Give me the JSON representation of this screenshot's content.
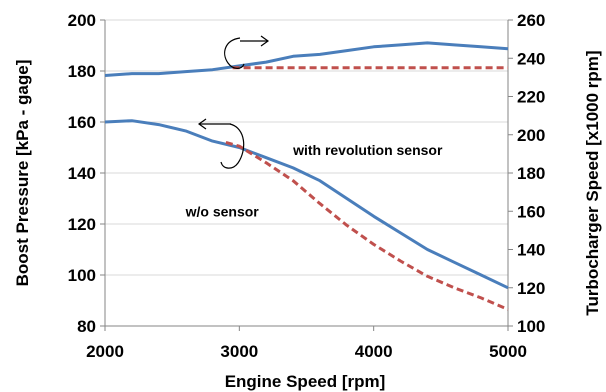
{
  "chart_data": {
    "type": "line",
    "title": "",
    "xlabel": "Engine Speed [rpm]",
    "ylabel_left": "Boost Pressure [kPa - gage]",
    "ylabel_right": "Turbocharger Speed [x1000 rpm]",
    "xlim": [
      2000,
      5000
    ],
    "ylim_left": [
      80,
      200
    ],
    "ylim_right": [
      100,
      260
    ],
    "x_ticks": [
      2000,
      3000,
      4000,
      5000
    ],
    "y_ticks_left": [
      80,
      100,
      120,
      140,
      160,
      180,
      200
    ],
    "y_ticks_right": [
      100,
      120,
      140,
      160,
      180,
      200,
      220,
      240,
      260
    ],
    "grid": "horizontal",
    "legend": "none",
    "series": [
      {
        "axis": "right",
        "color": "#4a7ebb",
        "dash": "solid",
        "x": [
          2000,
          2200,
          2400,
          2600,
          2800,
          3000,
          3200,
          3400,
          3600,
          3800,
          4000,
          4200,
          4400,
          4600,
          4800,
          5000
        ],
        "y": [
          231,
          232,
          232,
          233,
          234,
          236,
          238,
          241,
          242,
          244,
          246,
          247,
          248,
          247,
          246,
          245
        ]
      },
      {
        "axis": "right",
        "color": "#c0504d",
        "dash": "dashed",
        "x": [
          2950,
          3200,
          3600,
          4000,
          4400,
          5000
        ],
        "y": [
          235,
          235,
          235,
          235,
          235,
          235
        ]
      },
      {
        "axis": "left",
        "color": "#4a7ebb",
        "dash": "solid",
        "x": [
          2000,
          2200,
          2400,
          2600,
          2800,
          3000,
          3200,
          3400,
          3600,
          3800,
          4000,
          4200,
          4400,
          4600,
          4800,
          5000
        ],
        "y": [
          160,
          160.5,
          159,
          156.5,
          152.5,
          150,
          146,
          142,
          137,
          130,
          123,
          116.5,
          110,
          105,
          100,
          95
        ]
      },
      {
        "axis": "left",
        "color": "#c0504d",
        "dash": "dashed",
        "x": [
          2900,
          3000,
          3200,
          3400,
          3600,
          3800,
          4000,
          4200,
          4400,
          4600,
          4800,
          5000
        ],
        "y": [
          152,
          150.5,
          144,
          137,
          128,
          119.5,
          112,
          105.5,
          99.5,
          95,
          91,
          86.5
        ]
      }
    ],
    "annotations": [
      {
        "text": "with revolution sensor",
        "x": 3400,
        "y": 147
      },
      {
        "text": "w/o sensor",
        "x": 2600,
        "y": 123
      }
    ]
  }
}
